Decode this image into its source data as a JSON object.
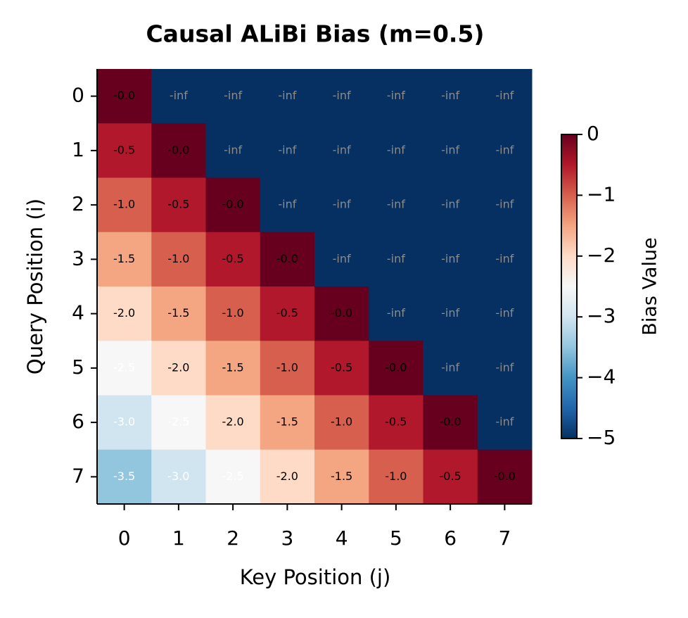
{
  "chart_data": {
    "type": "heatmap",
    "title": "Causal ALiBi Bias (m=0.5)",
    "x_label": "Key Position (j)",
    "y_label": "Query Position (i)",
    "x_categories": [
      "0",
      "1",
      "2",
      "3",
      "4",
      "5",
      "6",
      "7"
    ],
    "y_categories": [
      "0",
      "1",
      "2",
      "3",
      "4",
      "5",
      "6",
      "7"
    ],
    "values": [
      [
        0,
        null,
        null,
        null,
        null,
        null,
        null,
        null
      ],
      [
        -0.5,
        0,
        null,
        null,
        null,
        null,
        null,
        null
      ],
      [
        -1.0,
        -0.5,
        0,
        null,
        null,
        null,
        null,
        null
      ],
      [
        -1.5,
        -1.0,
        -0.5,
        0,
        null,
        null,
        null,
        null
      ],
      [
        -2.0,
        -1.5,
        -1.0,
        -0.5,
        0,
        null,
        null,
        null
      ],
      [
        -2.5,
        -2.0,
        -1.5,
        -1.0,
        -0.5,
        0,
        null,
        null
      ],
      [
        -3.0,
        -2.5,
        -2.0,
        -1.5,
        -1.0,
        -0.5,
        0,
        null
      ],
      [
        -3.5,
        -3.0,
        -2.5,
        -2.0,
        -1.5,
        -1.0,
        -0.5,
        0
      ]
    ],
    "value_labels": [
      [
        "-0.0",
        "-inf",
        "-inf",
        "-inf",
        "-inf",
        "-inf",
        "-inf",
        "-inf"
      ],
      [
        "-0.5",
        "-0.0",
        "-inf",
        "-inf",
        "-inf",
        "-inf",
        "-inf",
        "-inf"
      ],
      [
        "-1.0",
        "-0.5",
        "-0.0",
        "-inf",
        "-inf",
        "-inf",
        "-inf",
        "-inf"
      ],
      [
        "-1.5",
        "-1.0",
        "-0.5",
        "-0.0",
        "-inf",
        "-inf",
        "-inf",
        "-inf"
      ],
      [
        "-2.0",
        "-1.5",
        "-1.0",
        "-0.5",
        "-0.0",
        "-inf",
        "-inf",
        "-inf"
      ],
      [
        "-2.5",
        "-2.0",
        "-1.5",
        "-1.0",
        "-0.5",
        "-0.0",
        "-inf",
        "-inf"
      ],
      [
        "-3.0",
        "-2.5",
        "-2.0",
        "-1.5",
        "-1.0",
        "-0.5",
        "-0.0",
        "-inf"
      ],
      [
        "-3.5",
        "-3.0",
        "-2.5",
        "-2.0",
        "-1.5",
        "-1.0",
        "-0.5",
        "-0.0"
      ]
    ],
    "colormap": "RdBu_r",
    "clim": [
      -5,
      0
    ],
    "colorbar_label": "Bias Value",
    "colorbar_ticks": [
      {
        "value": 0,
        "label": "0"
      },
      {
        "value": -1,
        "label": "−1"
      },
      {
        "value": -2,
        "label": "−2"
      },
      {
        "value": -3,
        "label": "−3"
      },
      {
        "value": -4,
        "label": "−4"
      },
      {
        "value": -5,
        "label": "−5"
      }
    ]
  }
}
